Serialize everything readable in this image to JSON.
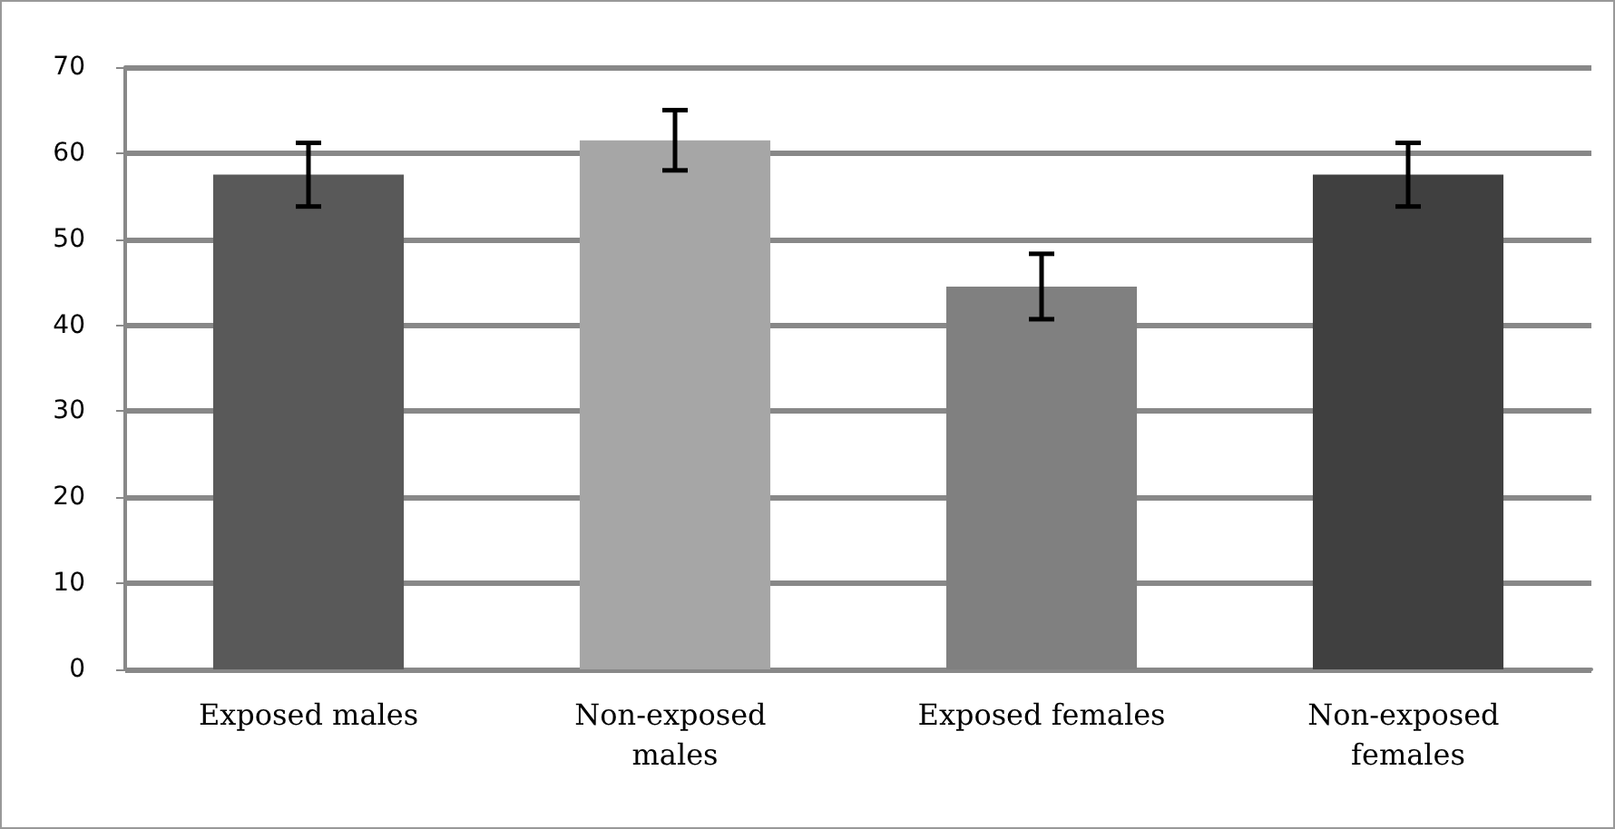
{
  "chart_data": {
    "type": "bar",
    "categories": [
      "Exposed males",
      "Non-exposed males",
      "Exposed females",
      "Non-exposed females"
    ],
    "values": [
      57.5,
      61.5,
      44.5,
      57.5
    ],
    "colors": [
      "#595959",
      "#a6a6a6",
      "#808080",
      "#404040"
    ],
    "errors": [
      3.7,
      3.5,
      3.8,
      3.7
    ],
    "ylim": [
      0,
      70
    ],
    "yticks": [
      0,
      10,
      20,
      30,
      40,
      50,
      60,
      70
    ],
    "grid": "y"
  }
}
